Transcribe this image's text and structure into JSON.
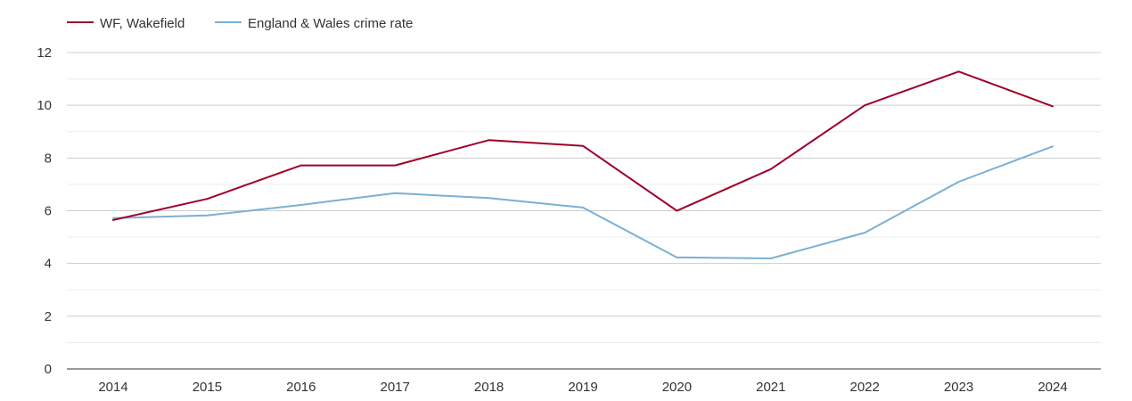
{
  "chart_data": {
    "type": "line",
    "title": "",
    "xlabel": "",
    "ylabel": "",
    "x": [
      "2014",
      "2015",
      "2016",
      "2017",
      "2018",
      "2019",
      "2020",
      "2021",
      "2022",
      "2023",
      "2024"
    ],
    "ylim": [
      0,
      12
    ],
    "yticks": [
      "0",
      "2",
      "4",
      "6",
      "8",
      "10",
      "12"
    ],
    "grid": true,
    "legend_position": "top-left",
    "series": [
      {
        "name": "WF, Wakefield",
        "color": "#a0002a",
        "values": [
          5.65,
          6.45,
          7.72,
          7.72,
          8.68,
          8.46,
          6.0,
          7.58,
          10.0,
          11.28,
          9.96
        ]
      },
      {
        "name": "England & Wales crime rate",
        "color": "#7ab0d4",
        "values": [
          5.72,
          5.82,
          6.22,
          6.67,
          6.48,
          6.12,
          4.23,
          4.19,
          5.17,
          7.1,
          8.44
        ]
      }
    ]
  }
}
